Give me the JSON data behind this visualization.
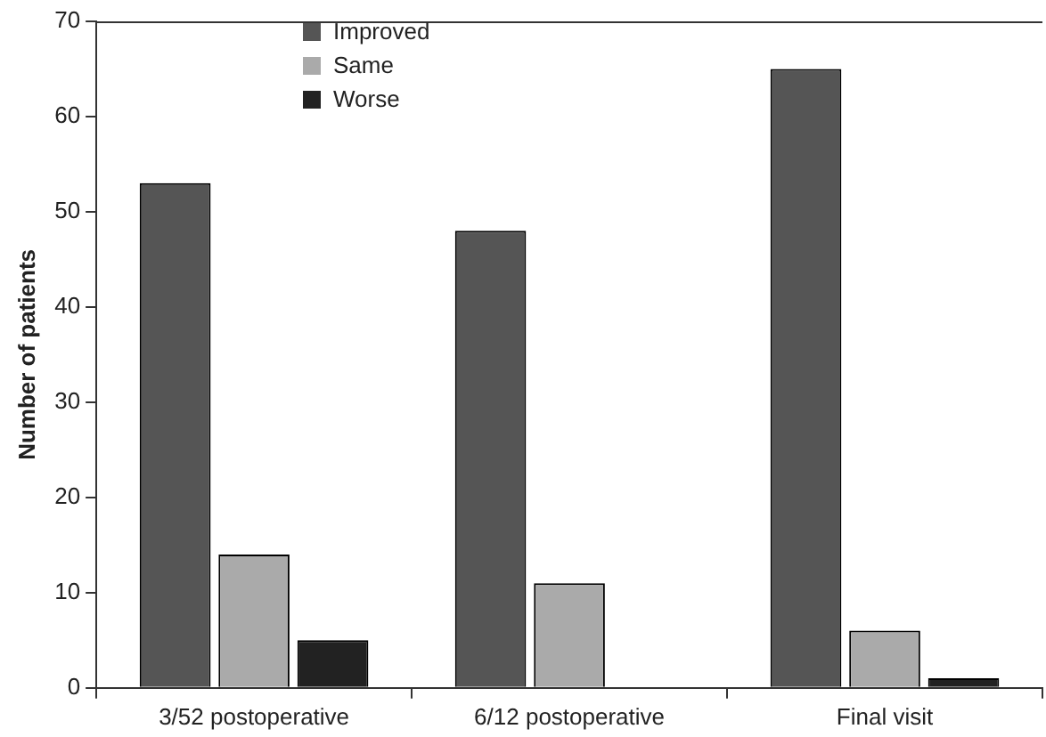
{
  "chart_data": {
    "type": "bar",
    "ylabel": "Number of patients",
    "categories": [
      "3/52 postoperative",
      "6/12 postoperative",
      "Final visit"
    ],
    "series": [
      {
        "name": "Improved",
        "color": "#555555",
        "values": [
          53,
          48,
          65
        ]
      },
      {
        "name": "Same",
        "color": "#aaaaaa",
        "values": [
          14,
          11,
          6
        ]
      },
      {
        "name": "Worse",
        "color": "#222222",
        "values": [
          5,
          0,
          1
        ]
      }
    ],
    "ylim": [
      0,
      70
    ],
    "yticks": [
      0,
      10,
      20,
      30,
      40,
      50,
      60,
      70
    ],
    "grid": false,
    "legend": "top left"
  }
}
